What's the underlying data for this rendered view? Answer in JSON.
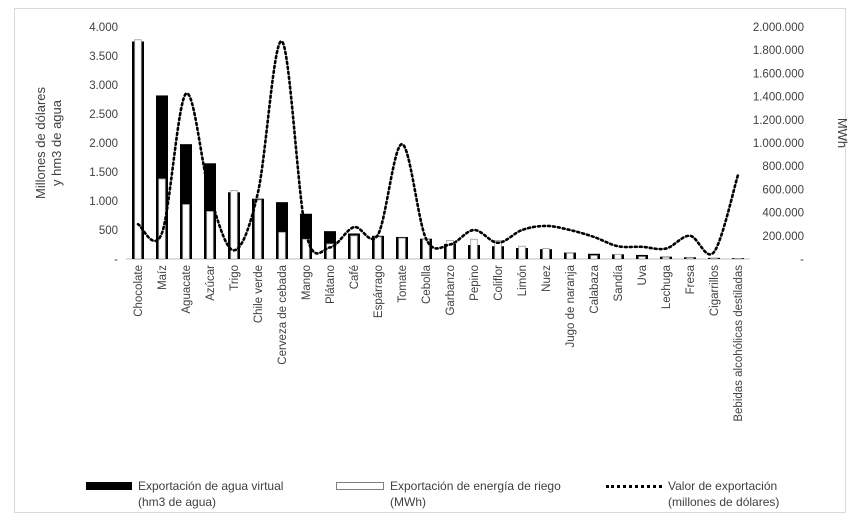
{
  "chart_data": {
    "type": "bar",
    "categories": [
      "Chocolate",
      "Maíz",
      "Aguacate",
      "Azúcar",
      "Trigo",
      "Chile verde",
      "Cerveza de cebada",
      "Mango",
      "Plátano",
      "Café",
      "Espárrago",
      "Tomate",
      "Cebolla",
      "Garbanzo",
      "Pepino",
      "Coliflor",
      "Limón",
      "Nuez",
      "Jugo de naranja",
      "Calabaza",
      "Sandía",
      "Uva",
      "Lechuga",
      "Fresa",
      "Cigarrillos",
      "Bebidas alcohólicas destiladas"
    ],
    "series": [
      {
        "name": "Exportación de agua virtual (hm3 de agua)",
        "axis": "left",
        "kind": "bar",
        "color": "#000000",
        "values": [
          3750,
          2820,
          1980,
          1650,
          1150,
          1040,
          980,
          780,
          480,
          440,
          400,
          380,
          350,
          260,
          240,
          220,
          190,
          170,
          110,
          90,
          80,
          70,
          40,
          30,
          20,
          15
        ]
      },
      {
        "name": "Exportación de energía de riego (MWh)",
        "axis": "right",
        "kind": "bar",
        "color": "#ffffff",
        "values": [
          1890000,
          690000,
          470000,
          410000,
          590000,
          510000,
          230000,
          170000,
          130000,
          200000,
          190000,
          180000,
          170000,
          160000,
          170000,
          160000,
          110000,
          90000,
          50000,
          30000,
          40000,
          20000,
          15000,
          10000,
          5000,
          5000
        ]
      },
      {
        "name": "Valor de exportación (millones de dólares)",
        "axis": "left",
        "kind": "line",
        "style": "dotted",
        "color": "#000000",
        "values": [
          600,
          450,
          2850,
          1100,
          150,
          1150,
          3750,
          450,
          200,
          550,
          420,
          1980,
          350,
          250,
          500,
          280,
          500,
          570,
          500,
          380,
          220,
          210,
          180,
          400,
          120,
          1450
        ]
      }
    ],
    "ylabel_left": "Millones de dólares\ny hm3 de agua",
    "ylabel_right": "MWh",
    "ylim_left": [
      0,
      4000
    ],
    "ylim_right": [
      0,
      2000000
    ],
    "yticks_left": [
      "-",
      "500",
      "1.000",
      "1.500",
      "2.000",
      "2.500",
      "3.000",
      "3.500",
      "4.000"
    ],
    "yticks_right": [
      "-",
      "200.000",
      "400.000",
      "600.000",
      "800.000",
      "1.000.000",
      "1.200.000",
      "1.400.000",
      "1.600.000",
      "1.800.000",
      "2.000.000"
    ],
    "grid": false,
    "legend_position": "bottom"
  },
  "legend": [
    {
      "line1": "Exportación de agua virtual",
      "line2": "(hm3 de agua)"
    },
    {
      "line1": "Exportación de energía de riego",
      "line2": "(MWh)"
    },
    {
      "line1": "Valor de exportación",
      "line2": "(millones de dólares)"
    }
  ]
}
